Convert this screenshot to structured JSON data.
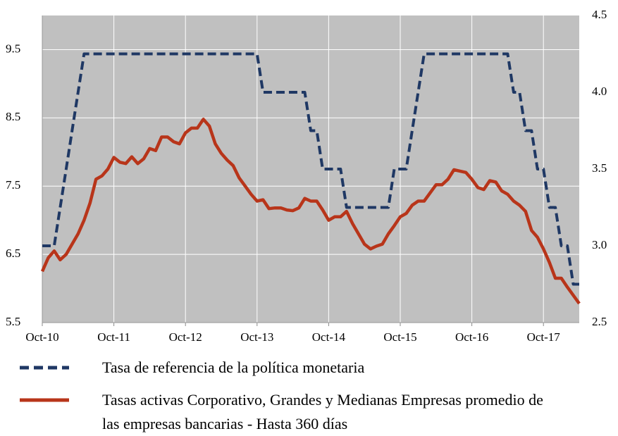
{
  "chart_data": {
    "type": "line",
    "categories": [
      "Oct-10",
      null,
      null,
      null,
      null,
      null,
      null,
      null,
      null,
      null,
      null,
      null,
      "Oct-11",
      null,
      null,
      null,
      null,
      null,
      null,
      null,
      null,
      null,
      null,
      null,
      "Oct-12",
      null,
      null,
      null,
      null,
      null,
      null,
      null,
      null,
      null,
      null,
      null,
      "Oct-13",
      null,
      null,
      null,
      null,
      null,
      null,
      null,
      null,
      null,
      null,
      null,
      "Oct-14",
      null,
      null,
      null,
      null,
      null,
      null,
      null,
      null,
      null,
      null,
      null,
      "Oct-15",
      null,
      null,
      null,
      null,
      null,
      null,
      null,
      null,
      null,
      null,
      null,
      "Oct-16",
      null,
      null,
      null,
      null,
      null,
      null,
      null,
      null,
      null,
      null,
      null,
      "Oct-17",
      null,
      null,
      null,
      null,
      null,
      null
    ],
    "series": [
      {
        "name": "Tasa de referencia de la política monetaria",
        "color": "#1f3864",
        "axis": "y2",
        "dashed": true,
        "values": [
          3,
          3,
          3,
          3.25,
          3.5,
          3.75,
          4,
          4.25,
          4.25,
          4.25,
          4.25,
          4.25,
          4.25,
          4.25,
          4.25,
          4.25,
          4.25,
          4.25,
          4.25,
          4.25,
          4.25,
          4.25,
          4.25,
          4.25,
          4.25,
          4.25,
          4.25,
          4.25,
          4.25,
          4.25,
          4.25,
          4.25,
          4.25,
          4.25,
          4.25,
          4.25,
          4.25,
          4,
          4,
          4,
          4,
          4,
          4,
          4,
          4,
          3.75,
          3.75,
          3.5,
          3.5,
          3.5,
          3.5,
          3.25,
          3.25,
          3.25,
          3.25,
          3.25,
          3.25,
          3.25,
          3.25,
          3.5,
          3.5,
          3.5,
          3.75,
          4,
          4.25,
          4.25,
          4.25,
          4.25,
          4.25,
          4.25,
          4.25,
          4.25,
          4.25,
          4.25,
          4.25,
          4.25,
          4.25,
          4.25,
          4.25,
          4,
          4,
          3.75,
          3.75,
          3.5,
          3.5,
          3.25,
          3.25,
          3,
          3,
          2.75,
          2.75
        ]
      },
      {
        "name": "Tasas activas Corporativo, Grandes y Medianas Empresas promedio de las empresas bancarias - Hasta 360 días",
        "color": "#b8351a",
        "axis": "y",
        "values": [
          6.25,
          6.45,
          6.55,
          6.42,
          6.5,
          6.65,
          6.8,
          7.0,
          7.25,
          7.6,
          7.65,
          7.75,
          7.92,
          7.85,
          7.83,
          7.93,
          7.83,
          7.9,
          8.05,
          8.02,
          8.22,
          8.22,
          8.15,
          8.12,
          8.28,
          8.35,
          8.35,
          8.48,
          8.38,
          8.12,
          7.98,
          7.88,
          7.8,
          7.62,
          7.5,
          7.38,
          7.28,
          7.3,
          7.17,
          7.18,
          7.18,
          7.15,
          7.14,
          7.18,
          7.32,
          7.28,
          7.28,
          7.15,
          7.0,
          7.05,
          7.05,
          7.13,
          6.95,
          6.8,
          6.65,
          6.58,
          6.62,
          6.65,
          6.8,
          6.92,
          7.05,
          7.1,
          7.22,
          7.28,
          7.28,
          7.4,
          7.52,
          7.52,
          7.6,
          7.74,
          7.72,
          7.7,
          7.6,
          7.48,
          7.45,
          7.58,
          7.56,
          7.43,
          7.38,
          7.28,
          7.22,
          7.13,
          6.85,
          6.75,
          6.58,
          6.38,
          6.15,
          6.15,
          6.02,
          5.9,
          5.78
        ]
      }
    ],
    "ylim": [
      5.5,
      10.0
    ],
    "yticks": [
      5.5,
      6.5,
      7.5,
      8.5,
      9.5
    ],
    "y2lim": [
      2.5,
      4.5
    ],
    "y2ticks": [
      2.5,
      {
        "value": 3,
        "label": "3.0"
      },
      3.5,
      {
        "value": 4,
        "label": "4.0"
      },
      4.5
    ],
    "grid": true,
    "background": "#c0c0c0",
    "legend": "bottom"
  }
}
